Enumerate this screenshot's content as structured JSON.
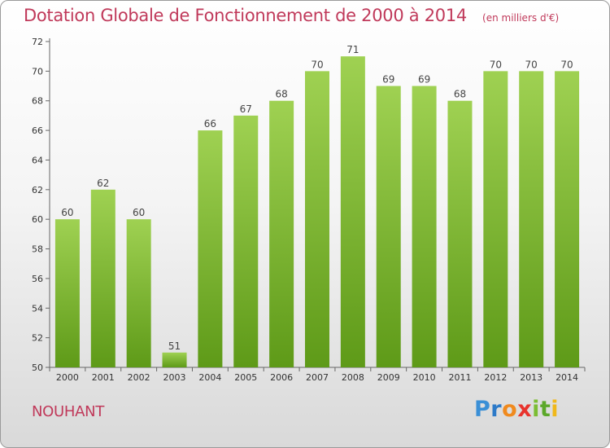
{
  "title": "Dotation Globale de Fonctionnement de 2000 à 2014",
  "unit_note": "(en milliers d'€)",
  "commune": "NOUHANT",
  "logo": [
    "P",
    "r",
    "o",
    "x",
    "i",
    "t",
    "i"
  ],
  "colors": {
    "bar_top": "#9fd152",
    "bar_bottom": "#5e9a18",
    "title": "#c0395a"
  },
  "chart_data": {
    "type": "bar",
    "title": "Dotation Globale de Fonctionnement de 2000 à 2014",
    "categories": [
      "2000",
      "2001",
      "2002",
      "2003",
      "2004",
      "2005",
      "2006",
      "2007",
      "2008",
      "2009",
      "2010",
      "2011",
      "2012",
      "2013",
      "2014"
    ],
    "values": [
      60,
      62,
      60,
      51,
      66,
      67,
      68,
      70,
      71,
      69,
      69,
      68,
      70,
      70,
      70
    ],
    "ylim": [
      50,
      72
    ],
    "yticks": [
      50,
      52,
      54,
      56,
      58,
      60,
      62,
      64,
      66,
      68,
      70,
      72
    ],
    "grid": false,
    "xlabel": "",
    "ylabel": ""
  }
}
